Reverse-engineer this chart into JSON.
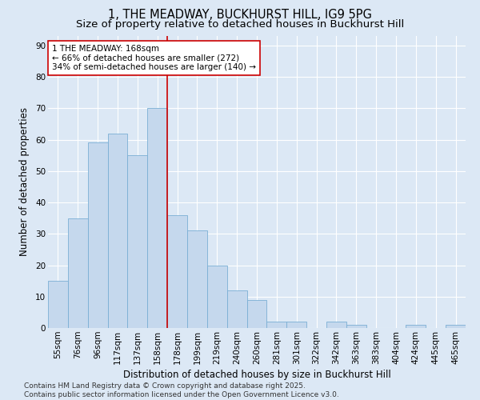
{
  "title_line1": "1, THE MEADWAY, BUCKHURST HILL, IG9 5PG",
  "title_line2": "Size of property relative to detached houses in Buckhurst Hill",
  "xlabel": "Distribution of detached houses by size in Buckhurst Hill",
  "ylabel": "Number of detached properties",
  "categories": [
    "55sqm",
    "76sqm",
    "96sqm",
    "117sqm",
    "137sqm",
    "158sqm",
    "178sqm",
    "199sqm",
    "219sqm",
    "240sqm",
    "260sqm",
    "281sqm",
    "301sqm",
    "322sqm",
    "342sqm",
    "363sqm",
    "383sqm",
    "404sqm",
    "424sqm",
    "445sqm",
    "465sqm"
  ],
  "values": [
    15,
    35,
    59,
    62,
    55,
    70,
    36,
    31,
    20,
    12,
    9,
    2,
    2,
    0,
    2,
    1,
    0,
    0,
    1,
    0,
    1
  ],
  "bar_color": "#c5d8ed",
  "bar_edge_color": "#7aafd4",
  "vline_x_index": 5,
  "vline_color": "#cc0000",
  "annotation_text": "1 THE MEADWAY: 168sqm\n← 66% of detached houses are smaller (272)\n34% of semi-detached houses are larger (140) →",
  "annotation_box_color": "#ffffff",
  "annotation_box_edge": "#cc0000",
  "ylim": [
    0,
    93
  ],
  "yticks": [
    0,
    10,
    20,
    30,
    40,
    50,
    60,
    70,
    80,
    90
  ],
  "background_color": "#dce8f5",
  "plot_bg_color": "#dce8f5",
  "footer_line1": "Contains HM Land Registry data © Crown copyright and database right 2025.",
  "footer_line2": "Contains public sector information licensed under the Open Government Licence v3.0.",
  "title_fontsize": 10.5,
  "subtitle_fontsize": 9.5,
  "axis_label_fontsize": 8.5,
  "tick_fontsize": 7.5,
  "annotation_fontsize": 7.5,
  "footer_fontsize": 6.5
}
